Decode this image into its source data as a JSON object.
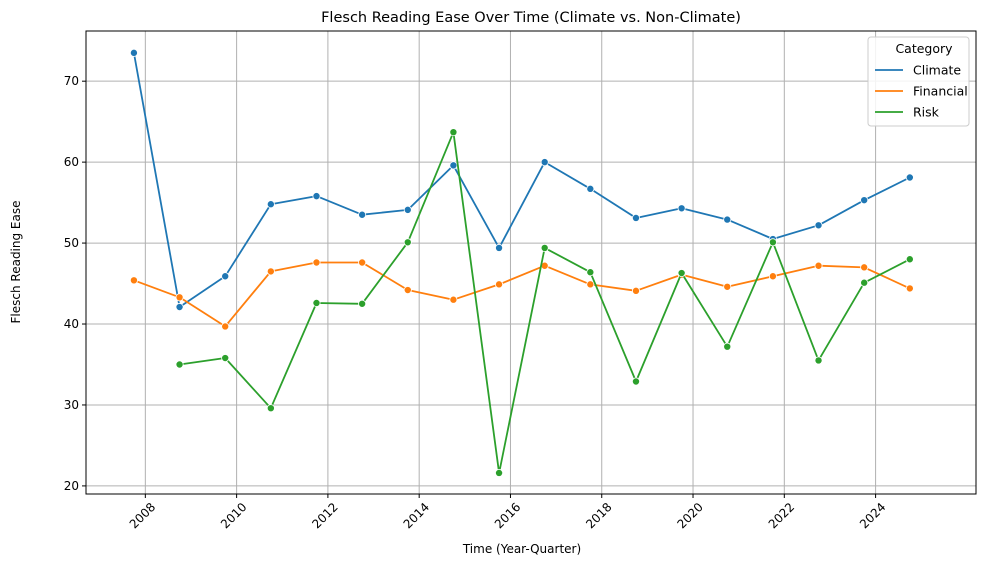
{
  "chart_data": {
    "type": "line",
    "title": "Flesch Reading Ease Over Time (Climate vs. Non-Climate)",
    "xlabel": "Time (Year-Quarter)",
    "ylabel": "Flesch Reading Ease",
    "xlim": [
      2006.7,
      2026.2
    ],
    "ylim": [
      19,
      76.2
    ],
    "xticks": [
      "2008",
      "2010",
      "2012",
      "2014",
      "2016",
      "2018",
      "2020",
      "2022",
      "2024"
    ],
    "yticks": [
      "20",
      "30",
      "40",
      "50",
      "60",
      "70"
    ],
    "grid": true,
    "legend": {
      "title": "Category",
      "position": "top-right"
    },
    "series": [
      {
        "name": "Climate",
        "color": "#1f77b4",
        "x": [
          2007.75,
          2008.75,
          2009.75,
          2010.75,
          2011.75,
          2012.75,
          2013.75,
          2014.75,
          2015.75,
          2016.75,
          2017.75,
          2018.75,
          2019.75,
          2020.75,
          2021.75,
          2022.75,
          2023.75,
          2024.75
        ],
        "values": [
          73.5,
          42.1,
          45.9,
          54.8,
          55.8,
          53.5,
          54.1,
          59.6,
          49.4,
          60.0,
          56.7,
          53.1,
          54.3,
          52.9,
          50.5,
          52.2,
          55.3,
          58.1
        ]
      },
      {
        "name": "Financial",
        "color": "#ff7f0e",
        "x": [
          2007.75,
          2008.75,
          2009.75,
          2010.75,
          2011.75,
          2012.75,
          2013.75,
          2014.75,
          2015.75,
          2016.75,
          2017.75,
          2018.75,
          2019.75,
          2020.75,
          2021.75,
          2022.75,
          2023.75,
          2024.75
        ],
        "values": [
          45.4,
          43.3,
          39.7,
          46.5,
          47.6,
          47.6,
          44.2,
          43.0,
          44.9,
          47.2,
          44.9,
          44.1,
          46.1,
          44.6,
          45.9,
          47.2,
          47.0,
          44.4
        ]
      },
      {
        "name": "Risk",
        "color": "#2ca02c",
        "x": [
          2008.75,
          2009.75,
          2010.75,
          2011.75,
          2012.75,
          2013.75,
          2014.75,
          2015.75,
          2016.75,
          2017.75,
          2018.75,
          2019.75,
          2020.75,
          2021.75,
          2022.75,
          2023.75,
          2024.75
        ],
        "values": [
          35.0,
          35.8,
          29.6,
          42.6,
          42.5,
          50.1,
          63.7,
          21.6,
          49.4,
          46.4,
          32.9,
          46.3,
          37.2,
          50.1,
          35.5,
          45.1,
          48.0
        ]
      }
    ]
  }
}
